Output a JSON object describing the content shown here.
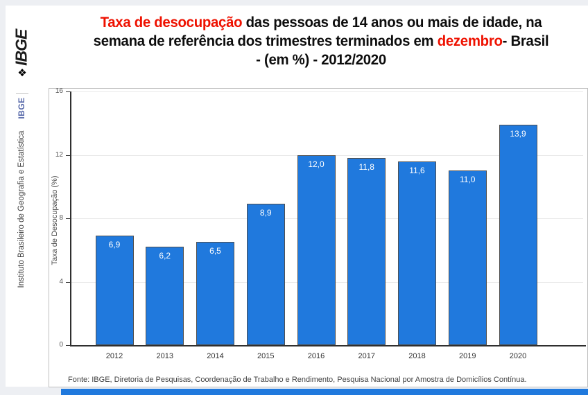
{
  "colors": {
    "bar_blue": "#2079dd",
    "title_red": "#ee1100",
    "title_black": "#0d0d0d",
    "acronym_blue": "#5567a8"
  },
  "sidebar": {
    "logo_icon": "❖",
    "logo_text": "IBGE",
    "acronym": "IBGE",
    "institute_name": "Instituto Brasileiro de Geografia e Estatística"
  },
  "title": {
    "seg1_red": "Taxa de desocupação",
    "seg1_black": " das pessoas de 14 anos ou mais de idade, na",
    "seg2_black": "semana de referência dos trimestres terminados em ",
    "seg2_red": "dezembro",
    "seg2_black2": "- Brasil",
    "seg3": "- (em %)  - 2012/2020"
  },
  "chart_data": {
    "type": "bar",
    "categories": [
      "2012",
      "2013",
      "2014",
      "2015",
      "2016",
      "2017",
      "2018",
      "2019",
      "2020"
    ],
    "values": [
      6.9,
      6.2,
      6.5,
      8.9,
      12.0,
      11.8,
      11.6,
      11.0,
      13.9
    ],
    "value_labels": [
      "6,9",
      "6,2",
      "6,5",
      "8,9",
      "12,0",
      "11,8",
      "11,6",
      "11,0",
      "13,9"
    ],
    "title": "Taxa de desocupação das pessoas de 14 anos ou mais de idade, na semana de referência dos trimestres terminados em dezembro - Brasil - (em %) - 2012/2020",
    "xlabel": "",
    "ylabel": "Taxa de Desocupação (%)",
    "ylim": [
      0,
      16
    ],
    "yticks": [
      0,
      4,
      8,
      12,
      16
    ],
    "grid": true,
    "legend": false,
    "bar_color": "#2079dd",
    "label_color": "#ffffff",
    "source": "Fonte: IBGE, Diretoria de Pesquisas, Coordenação de Trabalho e Rendimento, Pesquisa Nacional por Amostra de Domicílios Contínua."
  }
}
